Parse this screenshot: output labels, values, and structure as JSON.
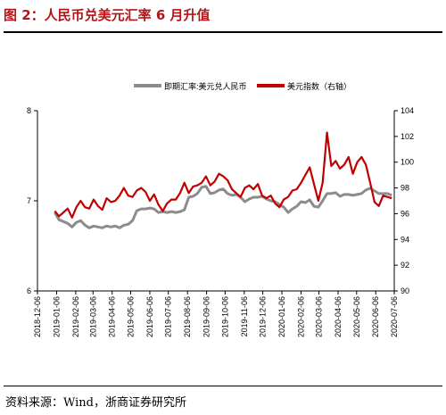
{
  "figure_title": "图 2：人民币兑美元汇率 6 月升值",
  "source_note": "资料来源：Wind，浙商证券研究所",
  "chart_data": {
    "type": "line",
    "legend_placement": "top",
    "grid": false,
    "y_left": {
      "ylim": [
        6,
        8
      ],
      "ticks": [
        "6",
        "7",
        "8"
      ]
    },
    "y_right": {
      "ylim": [
        90,
        104
      ],
      "ticks": [
        "90",
        "92",
        "94",
        "96",
        "98",
        "100",
        "102",
        "104"
      ]
    },
    "x_ticks": [
      "2018-12-06",
      "2019-01-06",
      "2019-02-06",
      "2019-03-06",
      "2019-04-06",
      "2019-05-06",
      "2019-06-06",
      "2019-07-06",
      "2019-08-06",
      "2019-09-06",
      "2019-10-06",
      "2019-11-06",
      "2019-12-06",
      "2020-01-06",
      "2020-02-06",
      "2020-03-06",
      "2020-04-06",
      "2020-05-06",
      "2020-06-06",
      "2020-07-06"
    ],
    "colors": {
      "usdcny": "#8c8c8c",
      "dxy": "#c00000"
    },
    "series": [
      {
        "name": "即期汇率:美元兑人民币",
        "axis": "left",
        "dates": [
          "2019-01-03",
          "2019-01-10",
          "2019-01-17",
          "2019-01-24",
          "2019-01-31",
          "2019-02-07",
          "2019-02-14",
          "2019-02-21",
          "2019-02-28",
          "2019-03-07",
          "2019-03-14",
          "2019-03-21",
          "2019-03-28",
          "2019-04-04",
          "2019-04-11",
          "2019-04-18",
          "2019-04-25",
          "2019-05-02",
          "2019-05-09",
          "2019-05-16",
          "2019-05-23",
          "2019-05-30",
          "2019-06-06",
          "2019-06-13",
          "2019-06-20",
          "2019-06-27",
          "2019-07-04",
          "2019-07-11",
          "2019-07-18",
          "2019-07-25",
          "2019-08-01",
          "2019-08-08",
          "2019-08-15",
          "2019-08-22",
          "2019-08-29",
          "2019-09-05",
          "2019-09-12",
          "2019-09-19",
          "2019-09-26",
          "2019-10-03",
          "2019-10-10",
          "2019-10-17",
          "2019-10-24",
          "2019-10-31",
          "2019-11-07",
          "2019-11-14",
          "2019-11-21",
          "2019-11-28",
          "2019-12-05",
          "2019-12-12",
          "2019-12-19",
          "2019-12-26",
          "2020-01-02",
          "2020-01-09",
          "2020-01-16",
          "2020-01-23",
          "2020-01-30",
          "2020-02-06",
          "2020-02-13",
          "2020-02-20",
          "2020-02-27",
          "2020-03-05",
          "2020-03-12",
          "2020-03-19",
          "2020-03-26",
          "2020-04-02",
          "2020-04-09",
          "2020-04-16",
          "2020-04-23",
          "2020-04-30",
          "2020-05-07",
          "2020-05-14",
          "2020-05-21",
          "2020-05-28",
          "2020-06-04",
          "2020-06-11",
          "2020-06-18",
          "2020-06-25",
          "2020-07-02"
        ],
        "values": [
          6.87,
          6.79,
          6.77,
          6.75,
          6.71,
          6.76,
          6.78,
          6.73,
          6.7,
          6.72,
          6.71,
          6.7,
          6.72,
          6.71,
          6.72,
          6.7,
          6.73,
          6.74,
          6.78,
          6.89,
          6.91,
          6.91,
          6.92,
          6.91,
          6.87,
          6.88,
          6.87,
          6.88,
          6.87,
          6.88,
          6.9,
          7.04,
          7.05,
          7.08,
          7.15,
          7.16,
          7.08,
          7.09,
          7.12,
          7.13,
          7.08,
          7.06,
          7.07,
          7.04,
          6.99,
          7.02,
          7.04,
          7.04,
          7.05,
          7.02,
          7.0,
          6.99,
          6.96,
          6.93,
          6.87,
          6.91,
          6.94,
          6.99,
          6.98,
          7.01,
          6.94,
          6.93,
          7.0,
          7.08,
          7.08,
          7.09,
          7.05,
          7.07,
          7.07,
          7.06,
          7.07,
          7.08,
          7.12,
          7.14,
          7.11,
          7.08,
          7.08,
          7.08,
          7.06
        ]
      },
      {
        "name": "美元指数（右轴）",
        "axis": "right",
        "dates": [
          "2019-01-03",
          "2019-01-10",
          "2019-01-17",
          "2019-01-24",
          "2019-01-31",
          "2019-02-07",
          "2019-02-14",
          "2019-02-21",
          "2019-02-28",
          "2019-03-07",
          "2019-03-14",
          "2019-03-21",
          "2019-03-28",
          "2019-04-04",
          "2019-04-11",
          "2019-04-18",
          "2019-04-25",
          "2019-05-02",
          "2019-05-09",
          "2019-05-16",
          "2019-05-23",
          "2019-05-30",
          "2019-06-06",
          "2019-06-13",
          "2019-06-20",
          "2019-06-27",
          "2019-07-04",
          "2019-07-11",
          "2019-07-18",
          "2019-07-25",
          "2019-08-01",
          "2019-08-08",
          "2019-08-15",
          "2019-08-22",
          "2019-08-29",
          "2019-09-05",
          "2019-09-12",
          "2019-09-19",
          "2019-09-26",
          "2019-10-03",
          "2019-10-10",
          "2019-10-17",
          "2019-10-24",
          "2019-10-31",
          "2019-11-07",
          "2019-11-14",
          "2019-11-21",
          "2019-11-28",
          "2019-12-05",
          "2019-12-12",
          "2019-12-19",
          "2019-12-26",
          "2020-01-02",
          "2020-01-09",
          "2020-01-16",
          "2020-01-23",
          "2020-01-30",
          "2020-02-06",
          "2020-02-13",
          "2020-02-20",
          "2020-02-27",
          "2020-03-05",
          "2020-03-12",
          "2020-03-19",
          "2020-03-26",
          "2020-04-02",
          "2020-04-09",
          "2020-04-16",
          "2020-04-23",
          "2020-04-30",
          "2020-05-07",
          "2020-05-14",
          "2020-05-21",
          "2020-05-28",
          "2020-06-04",
          "2020-06-11",
          "2020-06-18",
          "2020-06-25",
          "2020-07-02"
        ],
        "values": [
          96.2,
          95.8,
          96.1,
          96.4,
          95.7,
          96.5,
          97.0,
          96.5,
          96.4,
          97.1,
          96.6,
          96.3,
          97.2,
          96.9,
          97.0,
          97.4,
          98.0,
          97.4,
          97.3,
          97.8,
          98.0,
          97.7,
          97.0,
          97.5,
          96.7,
          96.2,
          96.8,
          97.1,
          97.1,
          97.6,
          98.4,
          97.6,
          98.1,
          98.2,
          98.4,
          98.9,
          98.2,
          98.5,
          99.1,
          98.9,
          98.6,
          97.9,
          97.6,
          97.3,
          98.0,
          98.2,
          97.9,
          98.3,
          97.4,
          97.2,
          97.4,
          96.8,
          96.5,
          97.1,
          97.3,
          97.8,
          97.9,
          98.4,
          99.0,
          99.6,
          98.3,
          97.0,
          98.4,
          102.3,
          99.7,
          100.1,
          99.5,
          99.8,
          100.4,
          99.1,
          100.0,
          100.4,
          99.8,
          98.4,
          96.9,
          96.6,
          97.4,
          97.3,
          97.2
        ]
      }
    ]
  }
}
